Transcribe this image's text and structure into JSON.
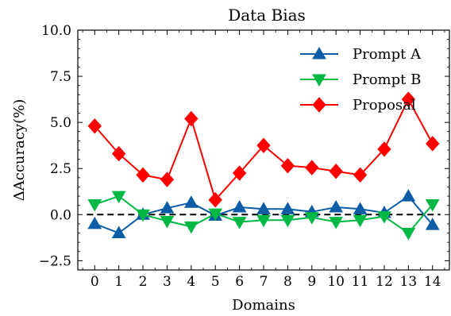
{
  "chart_data": {
    "type": "line",
    "title": "Data Bias",
    "xlabel": "Domains",
    "ylabel": "ΔAccuracy(%)",
    "x": [
      0,
      1,
      2,
      3,
      4,
      5,
      6,
      7,
      8,
      9,
      10,
      11,
      12,
      13,
      14
    ],
    "xticks": [
      "0",
      "1",
      "2",
      "3",
      "4",
      "5",
      "6",
      "7",
      "8",
      "9",
      "10",
      "11",
      "12",
      "13",
      "14"
    ],
    "yticks": [
      "−2.5",
      "0.0",
      "2.5",
      "5.0",
      "7.5",
      "10.0"
    ],
    "ytick_values": [
      -2.5,
      0.0,
      2.5,
      5.0,
      7.5,
      10.0
    ],
    "xlim": [
      -0.7,
      14.7
    ],
    "ylim": [
      -3.0,
      10.0
    ],
    "grid": false,
    "legend_position": "top-right",
    "reference_line": {
      "y": 0,
      "style": "dashed",
      "color": "#000000"
    },
    "series": [
      {
        "name": "Prompt A",
        "color": "#0C5DA5",
        "marker": "triangle-up",
        "values": [
          -0.5,
          -1.0,
          0.0,
          0.35,
          0.65,
          -0.05,
          0.4,
          0.3,
          0.3,
          0.15,
          0.4,
          0.3,
          0.1,
          1.0,
          -0.55
        ]
      },
      {
        "name": "Prompt B",
        "color": "#00B945",
        "marker": "triangle-down",
        "values": [
          0.55,
          1.0,
          0.0,
          -0.35,
          -0.65,
          0.05,
          -0.4,
          -0.3,
          -0.3,
          -0.15,
          -0.4,
          -0.3,
          -0.1,
          -1.0,
          0.55
        ]
      },
      {
        "name": "Proposal",
        "color": "#FF0000",
        "marker": "diamond",
        "values": [
          4.8,
          3.3,
          2.15,
          1.9,
          5.2,
          0.8,
          2.25,
          3.75,
          2.65,
          2.55,
          2.35,
          2.15,
          3.55,
          6.25,
          3.85
        ]
      }
    ]
  }
}
